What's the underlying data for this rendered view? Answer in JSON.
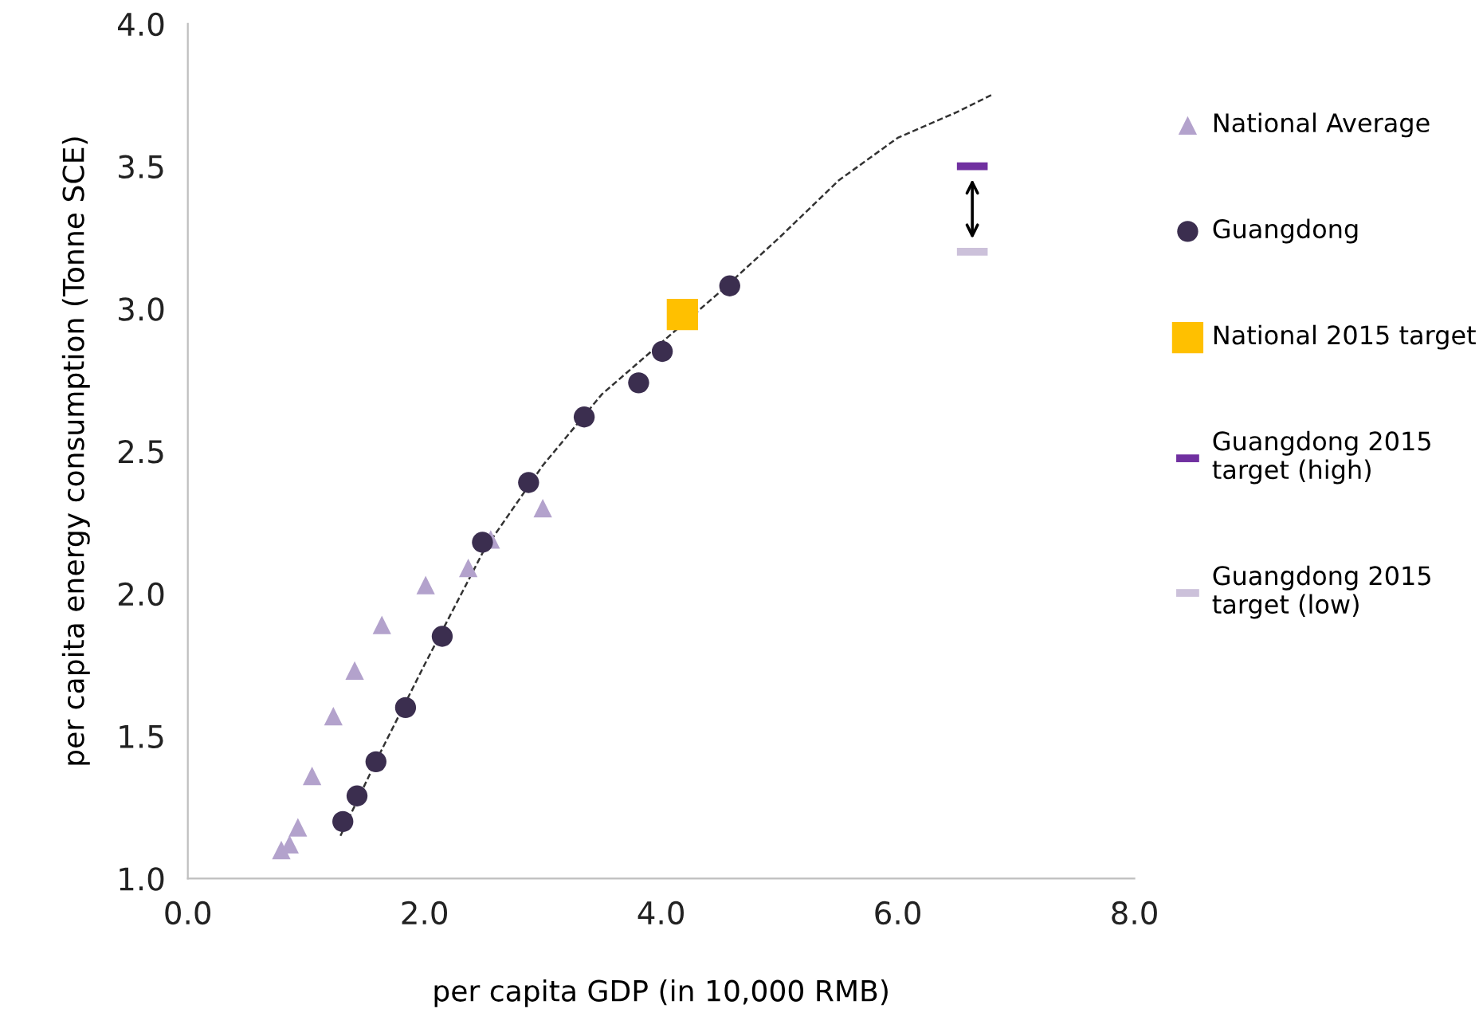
{
  "chart_data": {
    "type": "scatter",
    "xlabel": "per capita GDP (in 10,000 RMB)",
    "ylabel": "per capita energy consumption (Tonne SCE)",
    "xlim": [
      0,
      8
    ],
    "ylim": [
      1.0,
      4.0
    ],
    "xticks": [
      {
        "value": 0,
        "label": "0.0"
      },
      {
        "value": 2,
        "label": "2.0"
      },
      {
        "value": 4,
        "label": "4.0"
      },
      {
        "value": 6,
        "label": "6.0"
      },
      {
        "value": 8,
        "label": "8.0"
      }
    ],
    "yticks": [
      {
        "value": 1,
        "label": "1.0"
      },
      {
        "value": 1.5,
        "label": "1.5"
      },
      {
        "value": 2,
        "label": "2.0"
      },
      {
        "value": 2.5,
        "label": "2.5"
      },
      {
        "value": 3,
        "label": "3.0"
      },
      {
        "value": 3.5,
        "label": "3.5"
      },
      {
        "value": 4,
        "label": "4.0"
      }
    ],
    "grid": false,
    "legend": "right",
    "series": [
      {
        "name": "National Average",
        "marker": "triangle",
        "color": "#b3a2cc",
        "x": [
          0.79,
          0.86,
          0.93,
          1.05,
          1.23,
          1.41,
          1.64,
          2.01,
          2.37,
          2.56,
          3.0
        ],
        "values": [
          1.1,
          1.12,
          1.18,
          1.36,
          1.57,
          1.73,
          1.89,
          2.03,
          2.09,
          2.19,
          2.3
        ]
      },
      {
        "name": "Guangdong",
        "marker": "circle",
        "color": "#3b2e4f",
        "x": [
          1.31,
          1.43,
          1.59,
          1.84,
          2.15,
          2.49,
          2.88,
          3.35,
          3.81,
          4.01,
          4.58
        ],
        "values": [
          1.2,
          1.29,
          1.41,
          1.6,
          1.85,
          2.18,
          2.39,
          2.62,
          2.74,
          2.85,
          3.08
        ]
      },
      {
        "name": "National 2015 target",
        "marker": "square",
        "color": "#ffc000",
        "x": [
          4.18
        ],
        "values": [
          2.98
        ]
      },
      {
        "name": "Guangdong 2015\ntarget (high)",
        "type": "line",
        "color": "#7030a0",
        "x": [
          6.5,
          6.76
        ],
        "values": [
          3.5,
          3.5
        ]
      },
      {
        "name": "Guangdong 2015\ntarget (low)",
        "type": "line",
        "color": "#ccc1da",
        "x": [
          6.5,
          6.76
        ],
        "values": [
          3.2,
          3.2
        ]
      },
      {
        "type": "line",
        "line_style": "dashed",
        "color": "#333333",
        "x": [
          1.29,
          1.6,
          2.0,
          2.5,
          3.0,
          3.5,
          4.0,
          4.5,
          5.0,
          5.5,
          6.0,
          6.5,
          6.79
        ],
        "values": [
          1.15,
          1.42,
          1.75,
          2.15,
          2.45,
          2.7,
          2.88,
          3.06,
          3.25,
          3.45,
          3.6,
          3.69,
          3.75
        ]
      }
    ]
  }
}
